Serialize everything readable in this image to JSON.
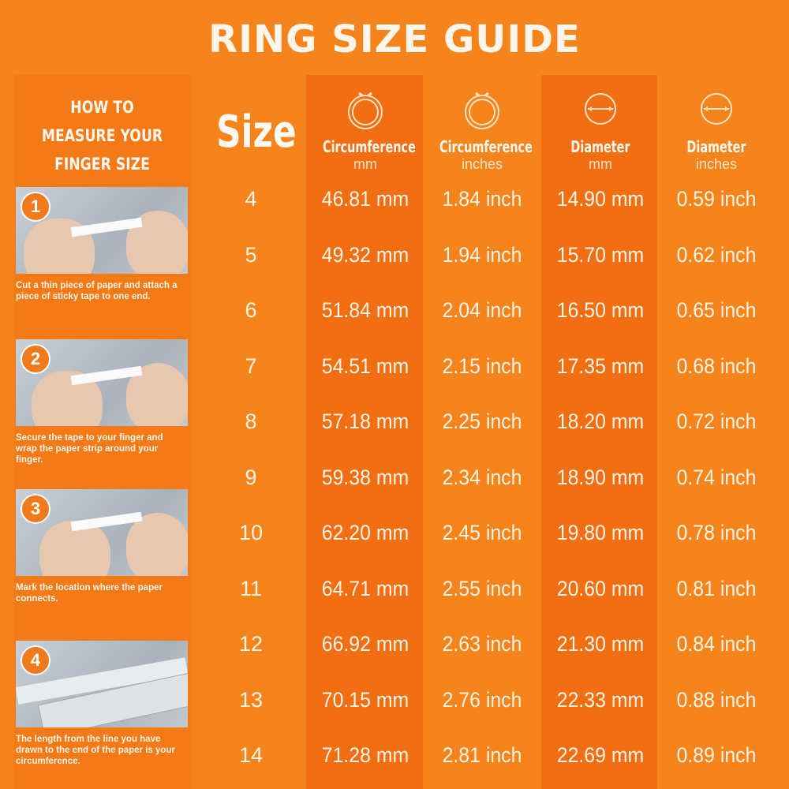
{
  "title": "RING SIZE GUIDE",
  "colors": {
    "background": "#f6841c",
    "stripe": "#f26e12",
    "text": "#fff3e4"
  },
  "how_to": {
    "heading": "HOW TO MEASURE YOUR FINGER SIZE",
    "steps": [
      {
        "number": "1",
        "text": "Cut a thin piece of paper and attach a piece of sticky tape to one end."
      },
      {
        "number": "2",
        "text": "Secure the tape to your finger and wrap the paper strip around your finger."
      },
      {
        "number": "3",
        "text": "Mark the location where the paper connects."
      },
      {
        "number": "4",
        "text": "The length from the line you have drawn to the end of the paper is your circumference."
      }
    ]
  },
  "table": {
    "size_header": "Size",
    "columns": [
      {
        "label": "Circumference",
        "unit": "mm",
        "icon": "ring-circumference-icon"
      },
      {
        "label": "Circumference",
        "unit": "inches",
        "icon": "ring-circumference-icon"
      },
      {
        "label": "Diameter",
        "unit": "mm",
        "icon": "ring-diameter-icon"
      },
      {
        "label": "Diameter",
        "unit": "inches",
        "icon": "ring-diameter-icon"
      }
    ],
    "rows": [
      {
        "size": "4",
        "values": [
          "46.81 mm",
          "1.84 inch",
          "14.90 mm",
          "0.59 inch"
        ]
      },
      {
        "size": "5",
        "values": [
          "49.32 mm",
          "1.94 inch",
          "15.70 mm",
          "0.62 inch"
        ]
      },
      {
        "size": "6",
        "values": [
          "51.84 mm",
          "2.04 inch",
          "16.50 mm",
          "0.65 inch"
        ]
      },
      {
        "size": "7",
        "values": [
          "54.51 mm",
          "2.15 inch",
          "17.35 mm",
          "0.68 inch"
        ]
      },
      {
        "size": "8",
        "values": [
          "57.18 mm",
          "2.25 inch",
          "18.20 mm",
          "0.72 inch"
        ]
      },
      {
        "size": "9",
        "values": [
          "59.38 mm",
          "2.34 inch",
          "18.90 mm",
          "0.74 inch"
        ]
      },
      {
        "size": "10",
        "values": [
          "62.20 mm",
          "2.45 inch",
          "19.80 mm",
          "0.78 inch"
        ]
      },
      {
        "size": "11",
        "values": [
          "64.71 mm",
          "2.55 inch",
          "20.60 mm",
          "0.81 inch"
        ]
      },
      {
        "size": "12",
        "values": [
          "66.92 mm",
          "2.63 inch",
          "21.30 mm",
          "0.84 inch"
        ]
      },
      {
        "size": "13",
        "values": [
          "70.15 mm",
          "2.76 inch",
          "22.33 mm",
          "0.88 inch"
        ]
      },
      {
        "size": "14",
        "values": [
          "71.28 mm",
          "2.81 inch",
          "22.69 mm",
          "0.89 inch"
        ]
      }
    ]
  }
}
